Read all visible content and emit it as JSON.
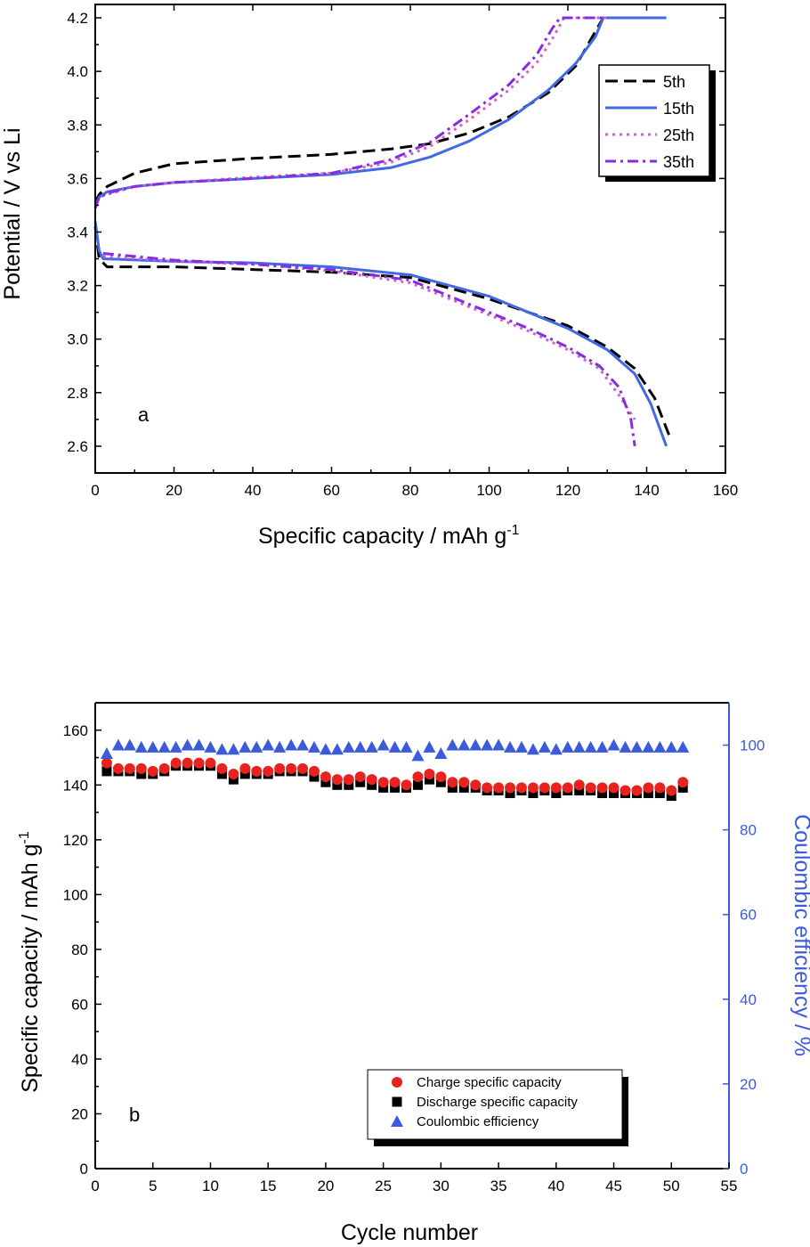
{
  "chart_data": [
    {
      "type": "line",
      "panel_label": "a",
      "xlabel": "Specific capacity / mAh g",
      "xlabel_sup": "-1",
      "ylabel": "Potential / V vs Li",
      "xlim": [
        0,
        160
      ],
      "ylim": [
        2.5,
        4.25
      ],
      "x_ticks": [
        0,
        20,
        40,
        60,
        80,
        100,
        120,
        140,
        160
      ],
      "y_ticks": [
        2.6,
        2.8,
        3.0,
        3.2,
        3.4,
        3.6,
        3.8,
        4.0,
        4.2
      ],
      "y_tick_labels": [
        "2.6",
        "2.8",
        "3.0",
        "3.2",
        "3.4",
        "3.6",
        "3.8",
        "4.0",
        "4.2"
      ],
      "legend_position": "top-right",
      "series": [
        {
          "name": "5th",
          "color": "#000000",
          "dash": "dash",
          "charge": [
            [
              0,
              3.51
            ],
            [
              1,
              3.54
            ],
            [
              3,
              3.57
            ],
            [
              10,
              3.62
            ],
            [
              20,
              3.655
            ],
            [
              40,
              3.675
            ],
            [
              60,
              3.69
            ],
            [
              75,
              3.71
            ],
            [
              85,
              3.73
            ],
            [
              95,
              3.77
            ],
            [
              105,
              3.83
            ],
            [
              115,
              3.92
            ],
            [
              122,
              4.02
            ],
            [
              127,
              4.15
            ],
            [
              129,
              4.2
            ],
            [
              145,
              4.2
            ]
          ],
          "discharge": [
            [
              0,
              3.42
            ],
            [
              1,
              3.3
            ],
            [
              3,
              3.27
            ],
            [
              20,
              3.27
            ],
            [
              40,
              3.26
            ],
            [
              60,
              3.25
            ],
            [
              80,
              3.23
            ],
            [
              100,
              3.15
            ],
            [
              110,
              3.1
            ],
            [
              120,
              3.05
            ],
            [
              130,
              2.97
            ],
            [
              137,
              2.89
            ],
            [
              142,
              2.78
            ],
            [
              146,
              2.63
            ]
          ]
        },
        {
          "name": "15th",
          "color": "#4169e1",
          "dash": "solid",
          "charge": [
            [
              0,
              3.49
            ],
            [
              1,
              3.53
            ],
            [
              3,
              3.55
            ],
            [
              10,
              3.57
            ],
            [
              20,
              3.585
            ],
            [
              40,
              3.6
            ],
            [
              60,
              3.615
            ],
            [
              75,
              3.64
            ],
            [
              85,
              3.68
            ],
            [
              95,
              3.74
            ],
            [
              105,
              3.82
            ],
            [
              115,
              3.93
            ],
            [
              122,
              4.03
            ],
            [
              127,
              4.13
            ],
            [
              129,
              4.2
            ],
            [
              145,
              4.2
            ]
          ],
          "discharge": [
            [
              0,
              3.44
            ],
            [
              1,
              3.33
            ],
            [
              2,
              3.3
            ],
            [
              20,
              3.29
            ],
            [
              40,
              3.285
            ],
            [
              60,
              3.27
            ],
            [
              80,
              3.24
            ],
            [
              100,
              3.16
            ],
            [
              110,
              3.1
            ],
            [
              120,
              3.04
            ],
            [
              130,
              2.96
            ],
            [
              137,
              2.87
            ],
            [
              141,
              2.76
            ],
            [
              145,
              2.6
            ]
          ]
        },
        {
          "name": "25th",
          "color": "#cc66cc",
          "dash": "dot",
          "charge": [
            [
              0,
              3.49
            ],
            [
              1,
              3.53
            ],
            [
              3,
              3.54
            ],
            [
              10,
              3.57
            ],
            [
              20,
              3.585
            ],
            [
              40,
              3.605
            ],
            [
              60,
              3.62
            ],
            [
              75,
              3.66
            ],
            [
              85,
              3.72
            ],
            [
              95,
              3.82
            ],
            [
              105,
              3.93
            ],
            [
              112,
              4.03
            ],
            [
              116,
              4.12
            ],
            [
              119,
              4.2
            ],
            [
              130,
              4.2
            ]
          ],
          "discharge": [
            [
              2,
              3.31
            ],
            [
              20,
              3.29
            ],
            [
              40,
              3.28
            ],
            [
              60,
              3.255
            ],
            [
              80,
              3.21
            ],
            [
              95,
              3.12
            ],
            [
              110,
              3.03
            ],
            [
              120,
              2.96
            ],
            [
              128,
              2.89
            ],
            [
              133,
              2.79
            ],
            [
              137,
              2.7
            ]
          ]
        },
        {
          "name": "35th",
          "color": "#8a2be2",
          "dash": "dashdot",
          "charge": [
            [
              0,
              3.49
            ],
            [
              1,
              3.53
            ],
            [
              3,
              3.545
            ],
            [
              10,
              3.57
            ],
            [
              20,
              3.585
            ],
            [
              40,
              3.6
            ],
            [
              60,
              3.62
            ],
            [
              75,
              3.67
            ],
            [
              85,
              3.735
            ],
            [
              95,
              3.84
            ],
            [
              105,
              3.95
            ],
            [
              112,
              4.06
            ],
            [
              116,
              4.16
            ],
            [
              118,
              4.2
            ],
            [
              130,
              4.2
            ]
          ],
          "discharge": [
            [
              2,
              3.32
            ],
            [
              20,
              3.295
            ],
            [
              40,
              3.28
            ],
            [
              60,
              3.26
            ],
            [
              80,
              3.22
            ],
            [
              95,
              3.13
            ],
            [
              110,
              3.04
            ],
            [
              120,
              2.97
            ],
            [
              128,
              2.9
            ],
            [
              133,
              2.82
            ],
            [
              136,
              2.7
            ],
            [
              137,
              2.6
            ]
          ]
        }
      ]
    },
    {
      "type": "scatter",
      "panel_label": "b",
      "xlabel": "Cycle number",
      "ylabel": "Specific capacity / mAh g",
      "ylabel_sup": "-1",
      "y2label": "Coulombic efficiency / %",
      "xlim": [
        0,
        55
      ],
      "ylim": [
        0,
        170
      ],
      "y2lim": [
        0,
        110
      ],
      "x_ticks": [
        0,
        5,
        10,
        15,
        20,
        25,
        30,
        35,
        40,
        45,
        50,
        55
      ],
      "y_ticks": [
        0,
        20,
        40,
        60,
        80,
        100,
        120,
        140,
        160
      ],
      "y2_ticks": [
        0,
        20,
        40,
        60,
        80,
        100
      ],
      "legend_position": "bottom-right",
      "x": [
        1,
        2,
        3,
        4,
        5,
        6,
        7,
        8,
        9,
        10,
        11,
        12,
        13,
        14,
        15,
        16,
        17,
        18,
        19,
        20,
        21,
        22,
        23,
        24,
        25,
        26,
        27,
        28,
        29,
        30,
        31,
        32,
        33,
        34,
        35,
        36,
        37,
        38,
        39,
        40,
        41,
        42,
        43,
        44,
        45,
        46,
        47,
        48,
        49,
        50,
        51
      ],
      "series": [
        {
          "name": "Charge specific capacity",
          "marker": "circle",
          "color": "#e8221f",
          "axis": "left",
          "values": [
            148,
            146,
            146,
            146,
            145,
            146,
            148,
            148,
            148,
            148,
            146,
            144,
            146,
            145,
            145,
            146,
            146,
            146,
            145,
            143,
            142,
            142,
            143,
            142,
            141,
            141,
            140,
            143,
            144,
            143,
            141,
            141,
            140,
            139,
            139,
            139,
            139,
            139,
            139,
            139,
            139,
            140,
            139,
            139,
            139,
            138,
            138,
            139,
            139,
            138,
            141
          ]
        },
        {
          "name": "Discharge specific capacity",
          "marker": "square",
          "color": "#000000",
          "axis": "left",
          "values": [
            145,
            145,
            145,
            144,
            144,
            145,
            147,
            147,
            147,
            147,
            144,
            142,
            144,
            144,
            144,
            145,
            145,
            145,
            143,
            141,
            140,
            140,
            141,
            140,
            139,
            139,
            139,
            140,
            142,
            141,
            139,
            139,
            139,
            138,
            138,
            137,
            138,
            137,
            138,
            137,
            138,
            138,
            138,
            137,
            137,
            137,
            137,
            137,
            137,
            136,
            139
          ]
        },
        {
          "name": "Coulombic efficiency",
          "marker": "triangle",
          "color": "#3b5bdb",
          "axis": "right",
          "values": [
            98,
            100,
            100,
            99.5,
            99.5,
            99.5,
            99.5,
            100,
            100,
            99.5,
            99,
            99,
            99.5,
            99.5,
            100,
            99.5,
            100,
            100,
            99.5,
            99,
            99,
            99.5,
            99.5,
            99.5,
            100,
            99.5,
            99.5,
            97.5,
            99.5,
            98,
            100,
            100,
            100,
            100,
            100,
            99.5,
            99.5,
            99,
            99.5,
            99,
            99.5,
            99.5,
            99.5,
            99.5,
            100,
            99.5,
            99.5,
            99.5,
            99.5,
            99.5,
            99.5
          ]
        }
      ]
    }
  ]
}
